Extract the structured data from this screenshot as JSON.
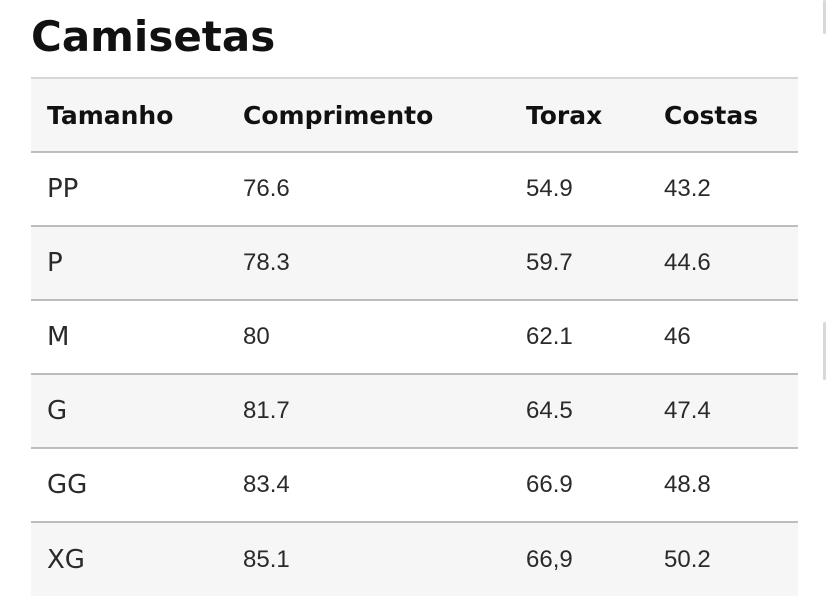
{
  "page": {
    "title": "Camisetas"
  },
  "table": {
    "headers": [
      "Tamanho",
      "Comprimento",
      "Torax",
      "Costas"
    ],
    "rows": [
      {
        "size": "PP",
        "comprimento": "76.6",
        "torax": "54.9",
        "costas": "43.2"
      },
      {
        "size": "P",
        "comprimento": "78.3",
        "torax": "59.7",
        "costas": "44.6"
      },
      {
        "size": "M",
        "comprimento": "80",
        "torax": "62.1",
        "costas": "46"
      },
      {
        "size": "G",
        "comprimento": "81.7",
        "torax": "64.5",
        "costas": "47.4"
      },
      {
        "size": "GG",
        "comprimento": "83.4",
        "torax": "66.9",
        "costas": "48.8"
      },
      {
        "size": "XG",
        "comprimento": "85.1",
        "torax": "66,9",
        "costas": "50.2"
      }
    ]
  },
  "colors": {
    "header_background": "#f6f6f6",
    "stripe_background": "#f6f6f6",
    "row_divider": "#bdbdbd",
    "text": "#1a1a1a"
  }
}
